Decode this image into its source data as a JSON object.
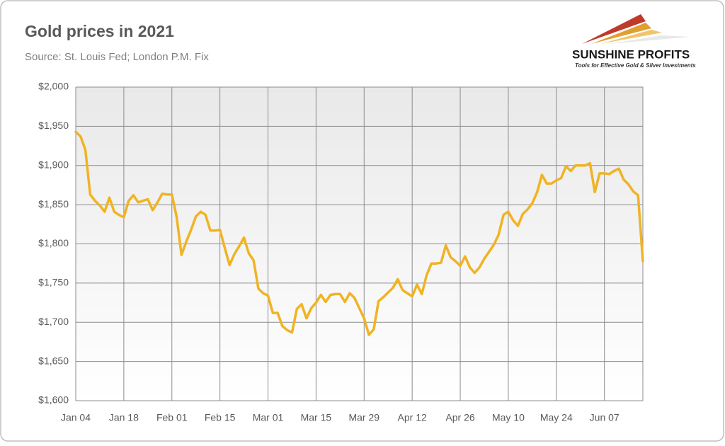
{
  "chart_data": {
    "type": "line",
    "title": "Gold prices in 2021",
    "subtitle": "Source: St. Louis Fed; London P.M. Fix",
    "categories": [
      "Jan 04",
      null,
      null,
      null,
      null,
      null,
      null,
      null,
      null,
      null,
      "Jan 18",
      null,
      null,
      null,
      null,
      null,
      null,
      null,
      null,
      null,
      "Feb 01",
      null,
      null,
      null,
      null,
      null,
      null,
      null,
      null,
      null,
      "Feb 15",
      null,
      null,
      null,
      null,
      null,
      null,
      null,
      null,
      null,
      "Mar 01",
      null,
      null,
      null,
      null,
      null,
      null,
      null,
      null,
      null,
      "Mar 15",
      null,
      null,
      null,
      null,
      null,
      null,
      null,
      null,
      null,
      "Mar 29",
      null,
      null,
      null,
      null,
      null,
      null,
      null,
      null,
      null,
      "Apr 12",
      null,
      null,
      null,
      null,
      null,
      null,
      null,
      null,
      null,
      "Apr 26",
      null,
      null,
      null,
      null,
      null,
      null,
      null,
      null,
      null,
      "May 10",
      null,
      null,
      null,
      null,
      null,
      null,
      null,
      null,
      null,
      "May 24",
      null,
      null,
      null,
      null,
      null,
      null,
      null,
      null,
      null,
      "Jun 07",
      null,
      null,
      null,
      null,
      null,
      null,
      null,
      null
    ],
    "values": [
      1943,
      1937,
      1920,
      1863,
      1855,
      1849,
      1841,
      1859,
      1841,
      1837,
      1834,
      1855,
      1862,
      1853,
      1855,
      1857,
      1843,
      1853,
      1864,
      1863,
      1863,
      1834,
      1786,
      1803,
      1818,
      1835,
      1841,
      1837,
      1817,
      1817,
      1818,
      1795,
      1773,
      1787,
      1797,
      1808,
      1788,
      1779,
      1743,
      1737,
      1734,
      1712,
      1712,
      1695,
      1690,
      1687,
      1717,
      1723,
      1705,
      1718,
      1725,
      1735,
      1726,
      1735,
      1736,
      1736,
      1726,
      1737,
      1731,
      1718,
      1705,
      1684,
      1691,
      1727,
      1732,
      1738,
      1744,
      1755,
      1741,
      1737,
      1733,
      1748,
      1736,
      1760,
      1775,
      1775,
      1776,
      1798,
      1783,
      1778,
      1772,
      1784,
      1770,
      1763,
      1770,
      1781,
      1790,
      1799,
      1812,
      1837,
      1841,
      1830,
      1823,
      1838,
      1844,
      1852,
      1866,
      1888,
      1877,
      1877,
      1881,
      1884,
      1899,
      1893,
      1900,
      1900,
      1900,
      1903,
      1866,
      1890,
      1890,
      1889,
      1893,
      1896,
      1882,
      1876,
      1867,
      1862,
      1778
    ],
    "color": "#f0b323",
    "ylim": [
      1600,
      2000
    ],
    "yticks": [
      {
        "value": 1600,
        "label": "$1,600"
      },
      {
        "value": 1650,
        "label": "$1,650"
      },
      {
        "value": 1700,
        "label": "$1,700"
      },
      {
        "value": 1750,
        "label": "$1,750"
      },
      {
        "value": 1800,
        "label": "$1,800"
      },
      {
        "value": 1850,
        "label": "$1,850"
      },
      {
        "value": 1900,
        "label": "$1,900"
      },
      {
        "value": 1950,
        "label": "$1,950"
      },
      {
        "value": 2000,
        "label": "$2,000"
      }
    ],
    "grid": true
  },
  "logo": {
    "name": "SUNSHINE PROFITS",
    "tagline": "Tools for Effective Gold & Silver Investments"
  }
}
